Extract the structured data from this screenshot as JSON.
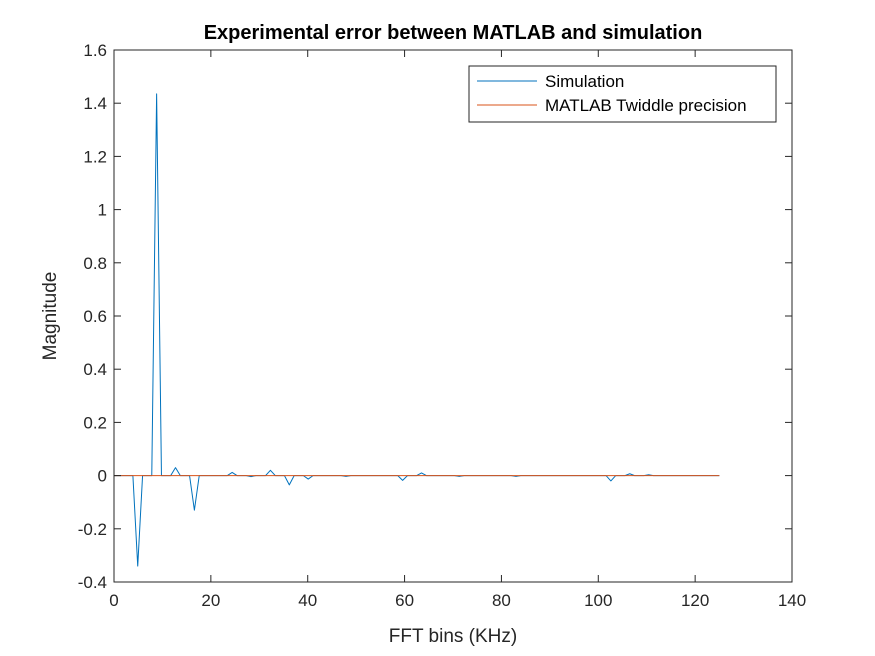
{
  "chart_data": {
    "type": "line",
    "title": "Experimental error between MATLAB and simulation",
    "xlabel": "FFT bins (KHz)",
    "ylabel": "Magnitude",
    "xlim": [
      0,
      140
    ],
    "ylim": [
      -0.4,
      1.6
    ],
    "xticks": [
      0,
      20,
      40,
      60,
      80,
      100,
      120,
      140
    ],
    "xtick_labels": [
      "0",
      "20",
      "40",
      "60",
      "80",
      "100",
      "120",
      "140"
    ],
    "yticks": [
      -0.4,
      -0.2,
      0,
      0.2,
      0.4,
      0.6,
      0.8,
      1,
      1.2,
      1.4,
      1.6
    ],
    "ytick_labels": [
      "-0.4",
      "-0.2",
      "0",
      "0.2",
      "0.4",
      "0.6",
      "0.8",
      "1",
      "1.2",
      "1.4",
      "1.6"
    ],
    "grid": false,
    "legend_position": "top-right",
    "series": [
      {
        "name": "Simulation",
        "color": "#0072BD",
        "points": [
          [
            0,
            0
          ],
          [
            3.9,
            0
          ],
          [
            4.9,
            -0.34
          ],
          [
            5.9,
            0
          ],
          [
            7.8,
            0
          ],
          [
            8.8,
            1.435
          ],
          [
            9.8,
            0
          ],
          [
            11.7,
            0
          ],
          [
            12.7,
            0.03
          ],
          [
            13.7,
            0
          ],
          [
            15.6,
            0
          ],
          [
            16.6,
            -0.13
          ],
          [
            17.6,
            0
          ],
          [
            23.4,
            0
          ],
          [
            24.4,
            0.012
          ],
          [
            25.4,
            0
          ],
          [
            27.3,
            0
          ],
          [
            28.3,
            -0.004
          ],
          [
            29.3,
            0
          ],
          [
            31.3,
            0
          ],
          [
            32.3,
            0.02
          ],
          [
            33.3,
            0
          ],
          [
            35.2,
            0
          ],
          [
            36.2,
            -0.035
          ],
          [
            37.2,
            0
          ],
          [
            39.1,
            0
          ],
          [
            40.1,
            -0.013
          ],
          [
            41.1,
            0
          ],
          [
            46.9,
            0
          ],
          [
            47.9,
            -0.003
          ],
          [
            48.9,
            0
          ],
          [
            58.6,
            0
          ],
          [
            59.6,
            -0.018
          ],
          [
            60.6,
            0
          ],
          [
            62.5,
            0
          ],
          [
            63.5,
            0.01
          ],
          [
            64.5,
            0
          ],
          [
            70.3,
            0
          ],
          [
            71.3,
            -0.003
          ],
          [
            72.3,
            0
          ],
          [
            82.0,
            0
          ],
          [
            83.0,
            -0.003
          ],
          [
            84.0,
            0
          ],
          [
            101.6,
            0
          ],
          [
            102.6,
            -0.02
          ],
          [
            103.6,
            0
          ],
          [
            105.5,
            0
          ],
          [
            106.5,
            0.007
          ],
          [
            107.5,
            0
          ],
          [
            109.4,
            0
          ],
          [
            110.4,
            0.003
          ],
          [
            111.4,
            0
          ],
          [
            125,
            0
          ]
        ]
      },
      {
        "name": "MATLAB Twiddle precision",
        "color": "#D95319",
        "points": [
          [
            0,
            0
          ],
          [
            125,
            0
          ]
        ]
      }
    ]
  }
}
